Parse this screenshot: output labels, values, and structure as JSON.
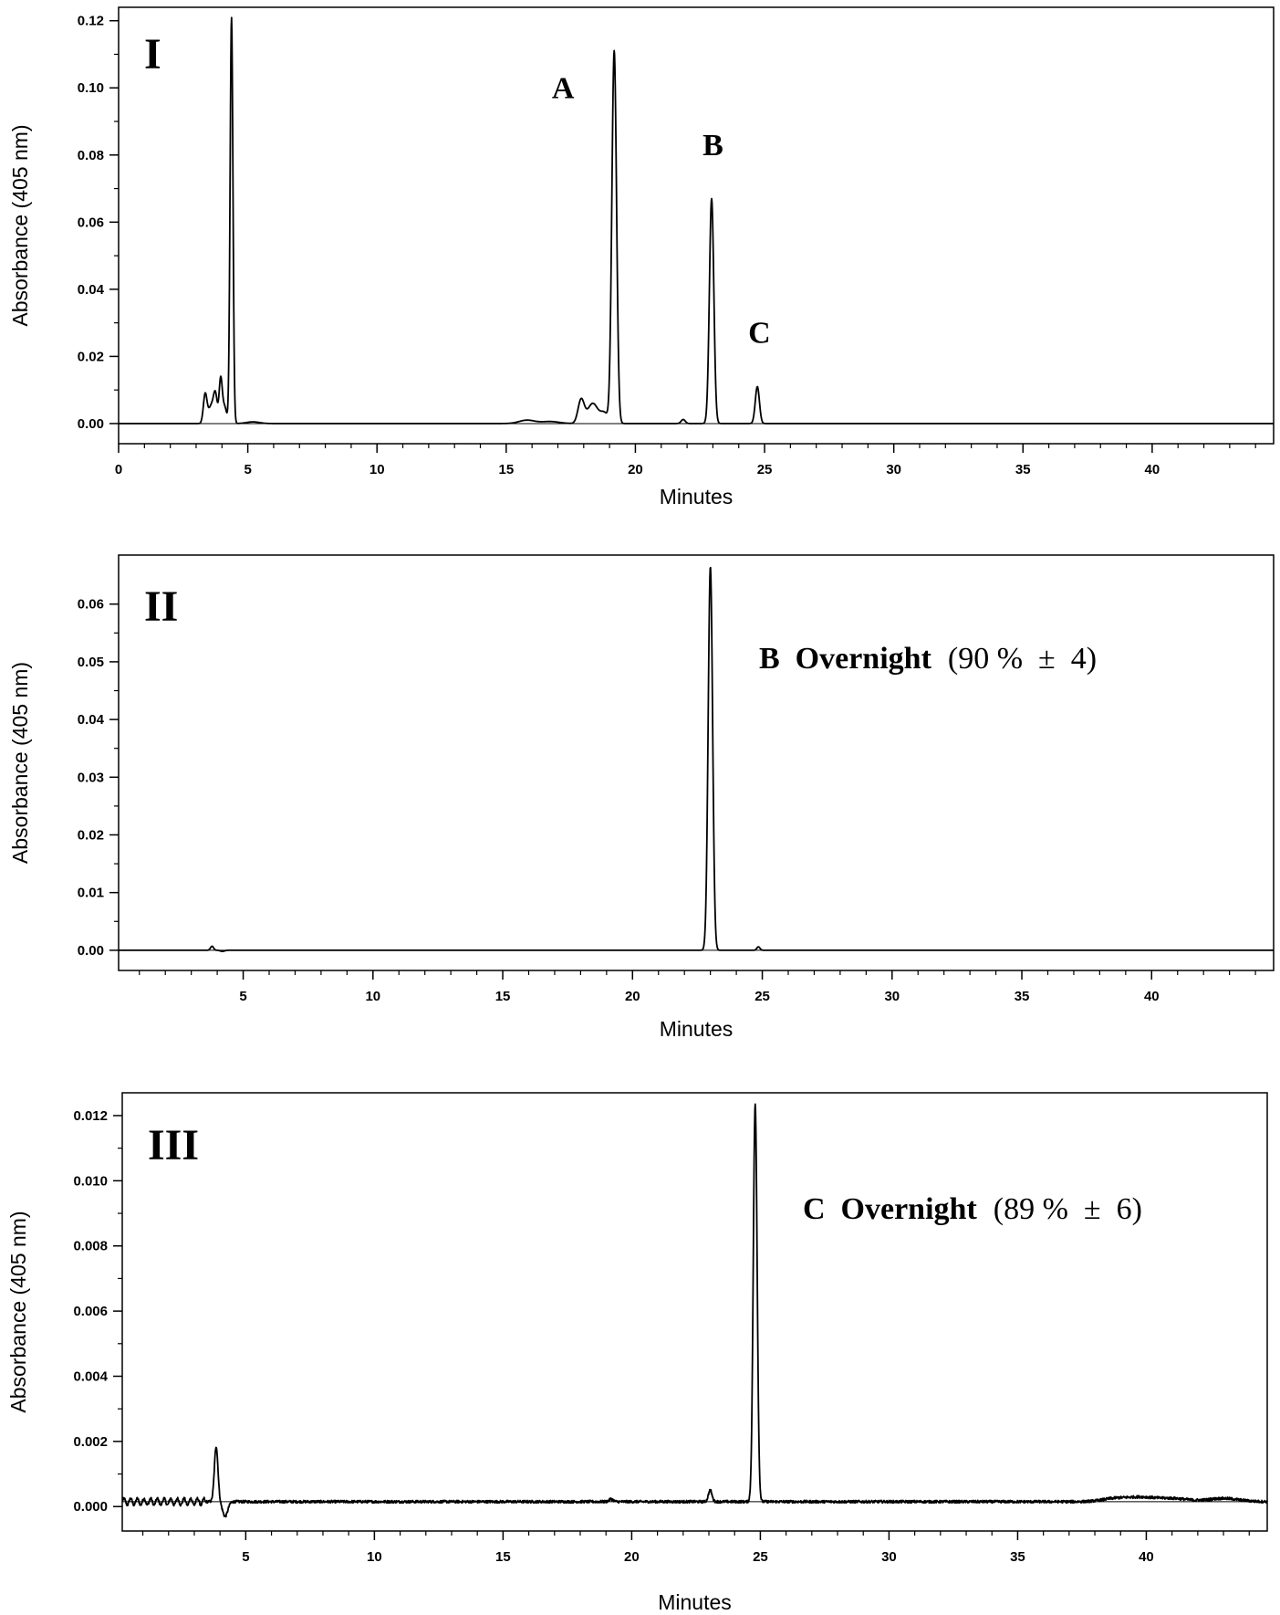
{
  "chart_data": [
    {
      "type": "line",
      "panel_label": "I",
      "xlabel": "Minutes",
      "ylabel": "Absorbance (405 nm)",
      "xlim": [
        0,
        44.7
      ],
      "ylim": [
        -0.006,
        0.124
      ],
      "xticks": [
        0,
        5,
        10,
        15,
        20,
        25,
        30,
        35,
        40
      ],
      "yticks": [
        0.0,
        0.02,
        0.04,
        0.06,
        0.08,
        0.1,
        0.12
      ],
      "ytick_decimals": 2,
      "baseline": 0,
      "peak_labels": [
        {
          "text": "A",
          "x": 17.2,
          "y": 0.097
        },
        {
          "text": "B",
          "x": 23.0,
          "y": 0.08
        },
        {
          "text": "C",
          "x": 24.8,
          "y": 0.024
        }
      ],
      "series": [
        {
          "peaks": [
            {
              "center": 3.35,
              "height": 0.0085,
              "width": 0.07
            },
            {
              "center": 3.6,
              "height": 0.0055,
              "width": 0.12
            },
            {
              "center": 3.75,
              "height": 0.007,
              "width": 0.07
            },
            {
              "center": 3.95,
              "height": 0.013,
              "width": 0.06
            },
            {
              "center": 4.1,
              "height": 0.005,
              "width": 0.08
            },
            {
              "center": 4.37,
              "height": 0.121,
              "width": 0.055
            },
            {
              "center": 5.2,
              "height": 0.0005,
              "width": 0.25
            },
            {
              "center": 15.8,
              "height": 0.001,
              "width": 0.3
            },
            {
              "center": 16.7,
              "height": 0.0006,
              "width": 0.35
            },
            {
              "center": 17.9,
              "height": 0.007,
              "width": 0.12
            },
            {
              "center": 18.35,
              "height": 0.006,
              "width": 0.2
            },
            {
              "center": 18.8,
              "height": 0.003,
              "width": 0.15
            },
            {
              "center": 19.18,
              "height": 0.111,
              "width": 0.09
            },
            {
              "center": 21.85,
              "height": 0.0012,
              "width": 0.08
            },
            {
              "center": 22.95,
              "height": 0.067,
              "width": 0.085
            },
            {
              "center": 24.72,
              "height": 0.011,
              "width": 0.08
            }
          ],
          "noise": 0
        }
      ]
    },
    {
      "type": "line",
      "panel_label": "II",
      "annotation": {
        "bold": "B  Overnight",
        "normal": "(90 %  ±  4)"
      },
      "xlabel": "Minutes",
      "ylabel": "Absorbance (405 nm)",
      "xlim": [
        0.2,
        44.7
      ],
      "ylim": [
        -0.0035,
        0.0685
      ],
      "xticks": [
        5,
        10,
        15,
        20,
        25,
        30,
        35,
        40
      ],
      "yticks": [
        0.0,
        0.01,
        0.02,
        0.03,
        0.04,
        0.05,
        0.06
      ],
      "ytick_decimals": 2,
      "baseline": 0,
      "series": [
        {
          "peaks": [
            {
              "center": 3.8,
              "height": 0.0007,
              "width": 0.06
            },
            {
              "center": 4.2,
              "height": -0.0002,
              "width": 0.08
            },
            {
              "center": 23.0,
              "height": 0.0665,
              "width": 0.085
            },
            {
              "center": 24.85,
              "height": 0.0006,
              "width": 0.06
            }
          ],
          "noise": 0
        }
      ]
    },
    {
      "type": "line",
      "panel_label": "III",
      "annotation": {
        "bold": "C  Overnight",
        "normal": "(89 %  ±  6)"
      },
      "xlabel": "Minutes",
      "ylabel": "Absorbance (405 nm)",
      "xlim": [
        0.2,
        44.7
      ],
      "ylim": [
        -0.00075,
        0.0127
      ],
      "xticks": [
        5,
        10,
        15,
        20,
        25,
        30,
        35,
        40
      ],
      "yticks": [
        0.0,
        0.002,
        0.004,
        0.006,
        0.008,
        0.01,
        0.012
      ],
      "ytick_decimals": 3,
      "baseline": 0.00015,
      "series": [
        {
          "peaks": [
            {
              "center": 3.85,
              "height": 0.0017,
              "width": 0.07
            },
            {
              "center": 4.2,
              "height": -0.00045,
              "width": 0.1
            },
            {
              "center": 19.2,
              "height": 8e-05,
              "width": 0.08
            },
            {
              "center": 23.05,
              "height": 0.00035,
              "width": 0.07
            },
            {
              "center": 24.8,
              "height": 0.0122,
              "width": 0.075
            },
            {
              "center": 38.8,
              "height": 0.0001,
              "width": 0.5
            },
            {
              "center": 39.8,
              "height": 0.00012,
              "width": 0.5
            },
            {
              "center": 41.0,
              "height": 0.0001,
              "width": 0.6
            },
            {
              "center": 43.0,
              "height": 0.0001,
              "width": 0.6
            }
          ],
          "ripple": {
            "start": 0.2,
            "end": 3.4,
            "amplitude": 0.0001,
            "period": 0.26
          },
          "noise": 4e-05
        }
      ]
    }
  ]
}
